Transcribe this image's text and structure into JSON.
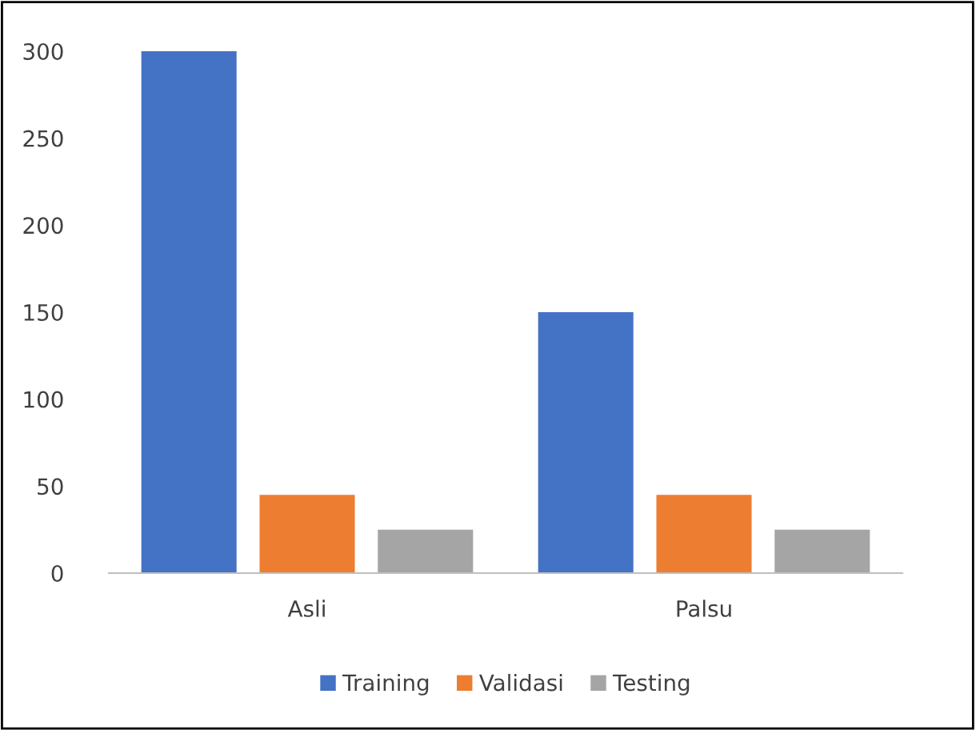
{
  "chart_data": {
    "type": "bar",
    "categories": [
      "Asli",
      "Palsu"
    ],
    "series": [
      {
        "name": "Training",
        "color": "#4472c4",
        "values": [
          300,
          150
        ]
      },
      {
        "name": "Validasi",
        "color": "#ed7d31",
        "values": [
          45,
          45
        ]
      },
      {
        "name": "Testing",
        "color": "#a5a5a5",
        "values": [
          25,
          25
        ]
      }
    ],
    "ylim": [
      0,
      300
    ],
    "yticks": [
      0,
      50,
      100,
      150,
      200,
      250,
      300
    ],
    "grid": false,
    "legend": "bottom"
  }
}
